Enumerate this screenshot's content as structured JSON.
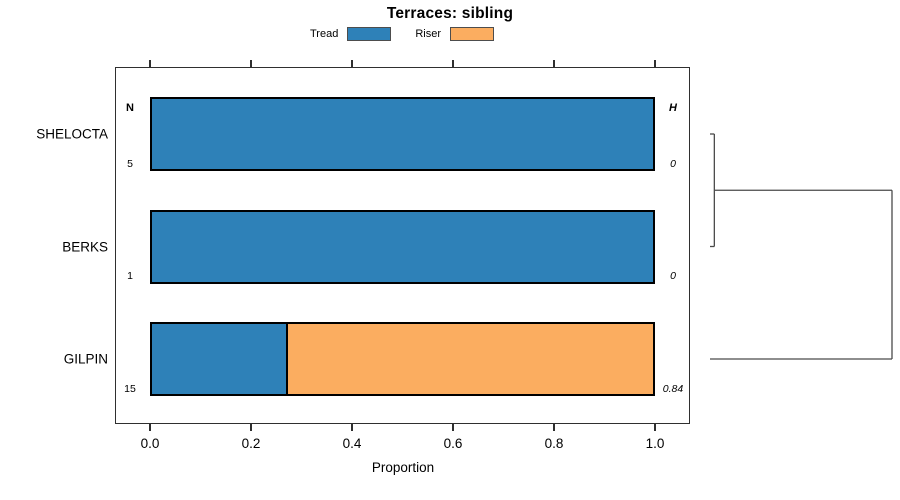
{
  "chart_data": {
    "type": "bar",
    "orientation": "horizontal",
    "stacked": true,
    "title": "Terraces: sibling",
    "xlabel": "Proportion",
    "xlim": [
      0,
      1
    ],
    "x_ticks": [
      0,
      0.2,
      0.4,
      0.6,
      0.8,
      1.0
    ],
    "x_tick_labels": [
      "0.0",
      "0.2",
      "0.4",
      "0.6",
      "0.8",
      "1.0"
    ],
    "grid": false,
    "legend_position": "top",
    "categories": [
      "SHELOCTA",
      "BERKS",
      "GILPIN"
    ],
    "series": [
      {
        "name": "Tread",
        "color": "#2E81B8",
        "values": [
          1.0,
          1.0,
          0.267
        ]
      },
      {
        "name": "Riser",
        "color": "#FBAD60",
        "values": [
          0.0,
          0.0,
          0.733
        ]
      }
    ],
    "n_column": {
      "header": "N",
      "values": [
        "5",
        "1",
        "15"
      ]
    },
    "h_column": {
      "header": "H",
      "values": [
        "0",
        "0",
        "0.84"
      ]
    },
    "bar_border_color": "#000000",
    "dendrogram": {
      "axis": "height",
      "max_height": 0.84,
      "pair_merge": {
        "members": [
          "SHELOCTA",
          "BERKS"
        ],
        "height": 0.02
      },
      "root_merge": {
        "members": [
          "SHELOCTA+BERKS",
          "GILPIN"
        ],
        "height": 0.84
      },
      "segments": [
        {
          "h1": 0,
          "h2": 0.02,
          "r1": 0,
          "r2": 0
        },
        {
          "h1": 0,
          "h2": 0.02,
          "r1": 1,
          "r2": 1
        },
        {
          "h1": 0.02,
          "h2": 0.02,
          "r1": 0,
          "r2": 1
        },
        {
          "h1": 0.02,
          "h2": 0.84,
          "r1": 0.5,
          "r2": 0.5
        },
        {
          "h1": 0,
          "h2": 0.84,
          "r1": 2,
          "r2": 2
        },
        {
          "h1": 0.84,
          "h2": 0.84,
          "r1": 0.5,
          "r2": 2
        }
      ]
    }
  }
}
